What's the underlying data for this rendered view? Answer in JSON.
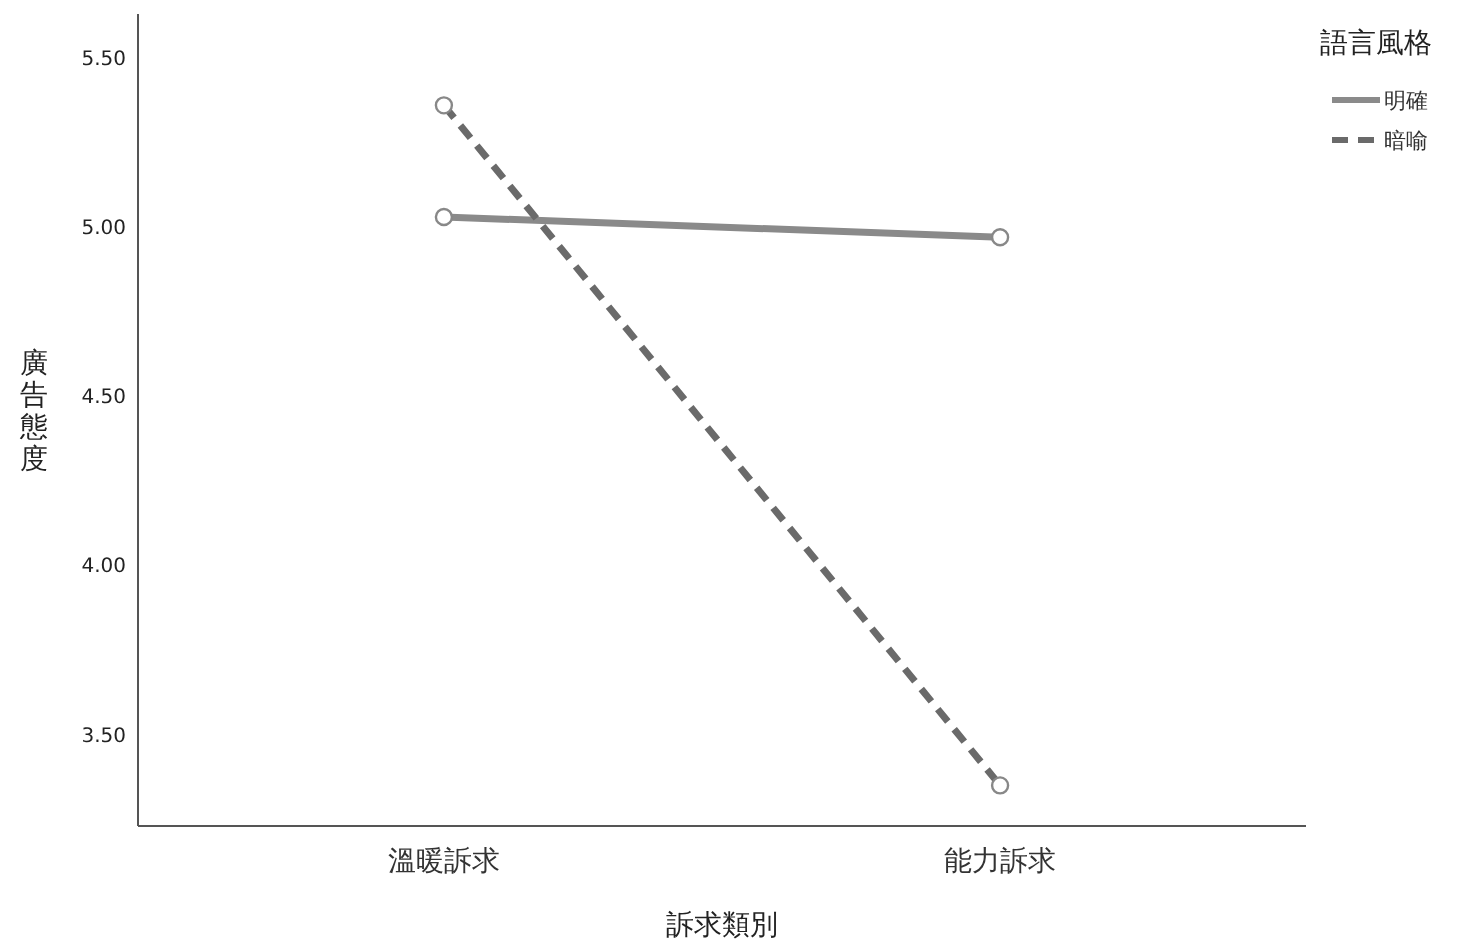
{
  "chart_data": {
    "type": "line",
    "xlabel": "訴求類別",
    "ylabel": "廣告態度",
    "legend_title": "語言風格",
    "categories": [
      "溫暖訴求",
      "能力訴求"
    ],
    "series": [
      {
        "name": "明確",
        "color": "#8a8a8a",
        "values": [
          5.03,
          4.97
        ],
        "line_style": "solid"
      },
      {
        "name": "暗喻",
        "color": "#6a6a6a",
        "values": [
          5.36,
          3.35
        ],
        "line_style": "dashed"
      }
    ],
    "ylim": [
      3.23,
      5.63
    ],
    "yticks": [
      {
        "value": 3.5,
        "label": "3.50"
      },
      {
        "value": 4,
        "label": "4.00"
      },
      {
        "value": 4.5,
        "label": "4.50"
      },
      {
        "value": 5,
        "label": "5.00"
      },
      {
        "value": 5.5,
        "label": "5.50"
      }
    ],
    "grid": false,
    "legend": "top right",
    "marker": "circle"
  }
}
